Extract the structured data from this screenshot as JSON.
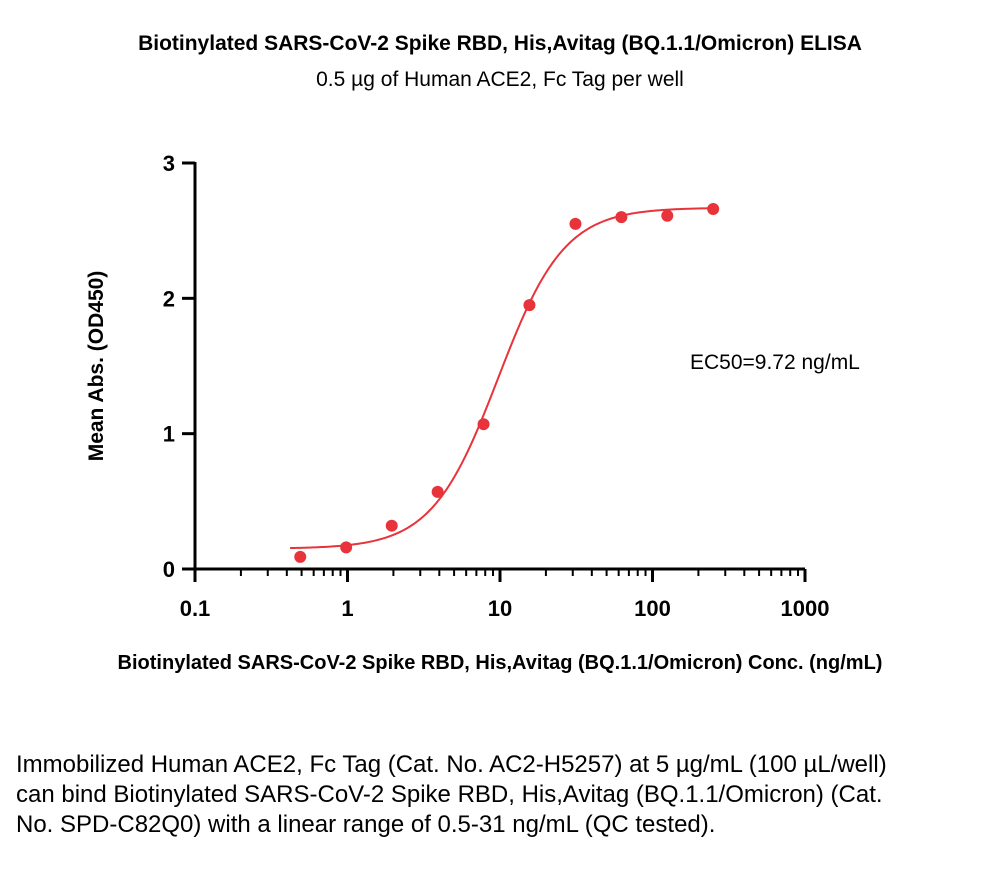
{
  "chart_data": {
    "type": "scatter",
    "title": "Biotinylated SARS-CoV-2 Spike RBD, His,Avitag (BQ.1.1/Omicron) ELISA",
    "subtitle": "0.5 µg of Human ACE2, Fc Tag  per well",
    "xlabel": "Biotinylated SARS-CoV-2 Spike RBD, His,Avitag (BQ.1.1/Omicron) Conc. (ng/mL)",
    "ylabel": "Mean Abs. (OD450)",
    "xscale": "log",
    "xlim": [
      0.1,
      1000
    ],
    "ylim": [
      0,
      3
    ],
    "xticks": [
      0.1,
      1,
      10,
      100,
      1000
    ],
    "xtick_labels": [
      "0.1",
      "1",
      "10",
      "100",
      "1000"
    ],
    "yticks": [
      0,
      1,
      2,
      3
    ],
    "ytick_labels": [
      "0",
      "1",
      "2",
      "3"
    ],
    "series": [
      {
        "name": "Mean Abs.",
        "x": [
          0.49,
          0.98,
          1.95,
          3.9,
          7.8,
          15.6,
          31.25,
          62.5,
          125,
          250
        ],
        "y": [
          0.09,
          0.16,
          0.32,
          0.57,
          1.07,
          1.95,
          2.55,
          2.6,
          2.61,
          2.66
        ],
        "color": "#e8333b"
      }
    ],
    "fit": {
      "model": "4PL",
      "bottom": 0.15,
      "top": 2.67,
      "ec50": 9.72,
      "hill": 2.0,
      "x_range": [
        0.42,
        250
      ],
      "color": "#e8333b"
    },
    "annotation": "EC50=9.72 ng/mL"
  },
  "caption": "Immobilized Human ACE2, Fc Tag (Cat. No. AC2-H5257) at 5 µg/mL (100 µL/well) can bind Biotinylated SARS-CoV-2 Spike RBD, His,Avitag (BQ.1.1/Omicron) (Cat. No. SPD-C82Q0) with a linear range of 0.5-31 ng/mL (QC tested)."
}
